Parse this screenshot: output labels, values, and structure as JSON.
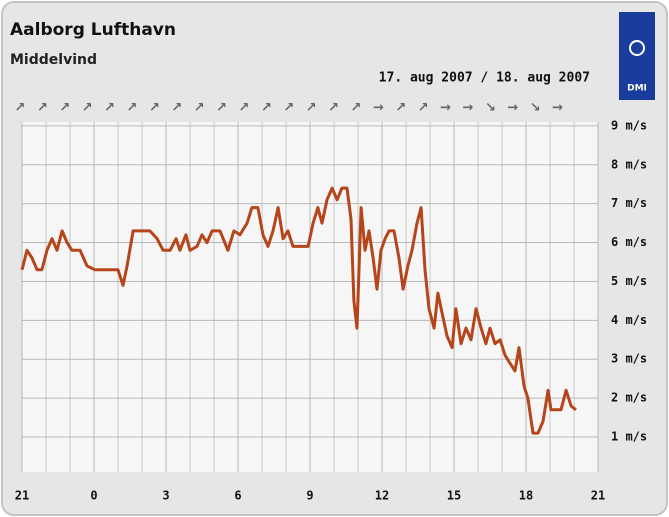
{
  "chart_data": {
    "type": "line",
    "title": "Aalborg Lufthavn",
    "subtitle": "Middelvind",
    "date_label": "17. aug 2007 / 18. aug 2007",
    "logo_text": "DMI",
    "directions": [
      "↗",
      "↗",
      "↗",
      "↗",
      "↗",
      "↗",
      "↗",
      "↗",
      "↗",
      "↗",
      "↗",
      "↗",
      "↗",
      "↗",
      "↗",
      "↗",
      "→",
      "↗",
      "↗",
      "→",
      "→",
      "↘",
      "→",
      "↘",
      "→"
    ],
    "x": [
      0,
      0.21,
      0.42,
      0.63,
      0.83,
      1.04,
      1.25,
      1.46,
      1.67,
      1.88,
      2.08,
      2.42,
      2.71,
      3.04,
      3.67,
      4.0,
      4.21,
      4.38,
      4.63,
      5.33,
      5.63,
      5.88,
      6.17,
      6.42,
      6.58,
      6.83,
      7.0,
      7.29,
      7.5,
      7.71,
      7.92,
      8.25,
      8.58,
      8.83,
      9.08,
      9.38,
      9.58,
      9.83,
      10.04,
      10.25,
      10.46,
      10.67,
      10.88,
      11.08,
      11.29,
      11.58,
      11.92,
      12.13,
      12.33,
      12.5,
      12.71,
      12.92,
      13.13,
      13.33,
      13.54,
      13.71,
      13.83,
      13.96,
      14.13,
      14.29,
      14.46,
      14.63,
      14.79,
      14.96,
      15.13,
      15.29,
      15.5,
      15.71,
      15.88,
      16.08,
      16.25,
      16.46,
      16.63,
      16.79,
      16.96,
      17.17,
      17.33,
      17.5,
      17.71,
      17.92,
      18.08,
      18.29,
      18.5,
      18.71,
      18.92,
      19.13,
      19.33,
      19.5,
      19.71,
      19.92,
      20.13,
      20.33,
      20.54,
      20.71,
      20.92,
      21.08,
      21.29,
      21.5,
      21.71,
      21.92,
      22.04,
      22.25,
      22.46,
      22.67,
      22.88,
      23.08
    ],
    "series": [
      {
        "name": "Middelvind",
        "color": "#b5451b",
        "values": [
          5.3,
          5.8,
          5.6,
          5.3,
          5.3,
          5.8,
          6.1,
          5.8,
          6.3,
          6.0,
          5.8,
          5.8,
          5.4,
          5.3,
          5.3,
          5.3,
          4.9,
          5.4,
          6.3,
          6.3,
          6.1,
          5.8,
          5.8,
          6.1,
          5.8,
          6.2,
          5.8,
          5.9,
          6.2,
          6.0,
          6.3,
          6.3,
          5.8,
          6.3,
          6.2,
          6.5,
          6.9,
          6.9,
          6.2,
          5.9,
          6.3,
          6.9,
          6.1,
          6.3,
          5.9,
          5.9,
          5.9,
          6.5,
          6.9,
          6.5,
          7.1,
          7.4,
          7.1,
          7.4,
          7.4,
          6.6,
          4.5,
          3.8,
          6.9,
          5.8,
          6.3,
          5.6,
          4.8,
          5.8,
          6.1,
          6.3,
          6.3,
          5.6,
          4.8,
          5.4,
          5.8,
          6.5,
          6.9,
          5.3,
          4.3,
          3.8,
          4.7,
          4.2,
          3.6,
          3.3,
          4.3,
          3.4,
          3.8,
          3.5,
          4.3,
          3.8,
          3.4,
          3.8,
          3.4,
          3.5,
          3.1,
          2.9,
          2.7,
          3.3,
          2.3,
          2.0,
          1.1,
          1.1,
          1.4,
          2.2,
          1.7,
          1.7,
          1.7,
          2.2,
          1.8,
          1.7
        ]
      }
    ],
    "xlim": [
      0,
      24
    ],
    "xticks": [
      {
        "value": 0,
        "label": "21"
      },
      {
        "value": 3,
        "label": "0"
      },
      {
        "value": 6,
        "label": "3"
      },
      {
        "value": 9,
        "label": "6"
      },
      {
        "value": 12,
        "label": "9"
      },
      {
        "value": 15,
        "label": "12"
      },
      {
        "value": 18,
        "label": "15"
      },
      {
        "value": 21,
        "label": "18"
      },
      {
        "value": 24,
        "label": "21"
      }
    ],
    "ylim": [
      0.1,
      9.1
    ],
    "yticks": [
      {
        "value": 1,
        "label": "1 m/s"
      },
      {
        "value": 2,
        "label": "2 m/s"
      },
      {
        "value": 3,
        "label": "3 m/s"
      },
      {
        "value": 4,
        "label": "4 m/s"
      },
      {
        "value": 5,
        "label": "5 m/s"
      },
      {
        "value": 6,
        "label": "6 m/s"
      },
      {
        "value": 7,
        "label": "7 m/s"
      },
      {
        "value": 8,
        "label": "8 m/s"
      },
      {
        "value": 9,
        "label": "9 m/s"
      }
    ],
    "grid": true
  }
}
